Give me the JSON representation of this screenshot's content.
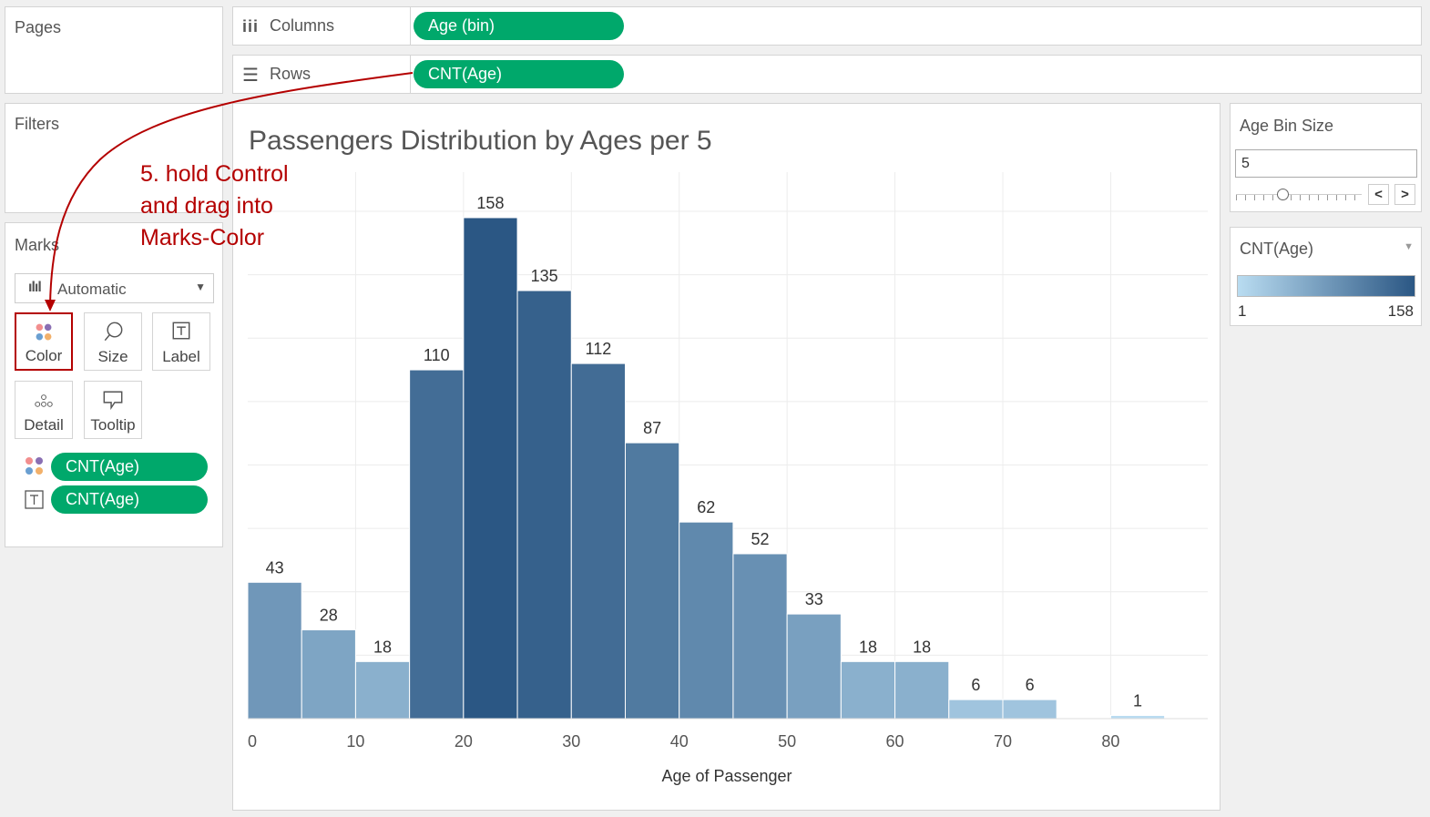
{
  "pages": {
    "label": "Pages"
  },
  "filters": {
    "label": "Filters"
  },
  "shelves": {
    "columns": {
      "label": "Columns",
      "pill": "Age (bin)"
    },
    "rows": {
      "label": "Rows",
      "pill": "CNT(Age)"
    }
  },
  "marks": {
    "label": "Marks",
    "type": "Automatic",
    "buttons": {
      "color": "Color",
      "size": "Size",
      "label": "Label",
      "detail": "Detail",
      "tooltip": "Tooltip"
    },
    "pills": [
      "CNT(Age)",
      "CNT(Age)"
    ]
  },
  "annotation": {
    "lines": [
      "5. hold Control",
      "and drag into",
      "Marks-Color"
    ]
  },
  "parameter": {
    "title": "Age Bin Size",
    "value": "5"
  },
  "legend": {
    "title": "CNT(Age)",
    "min": "1",
    "max": "158"
  },
  "colors": {
    "pill": "#00a86b",
    "annotation": "#b40000",
    "bar_light": "#a9d0ea",
    "bar_dark": "#2b5784"
  },
  "chart_data": {
    "type": "bar",
    "title": "Passengers Distribution by Ages per 5",
    "xlabel": "Age of Passenger",
    "ylabel": "",
    "bin_size": 5,
    "x": [
      0,
      5,
      10,
      15,
      20,
      25,
      30,
      35,
      40,
      45,
      50,
      55,
      60,
      65,
      70,
      75,
      80
    ],
    "values": [
      43,
      28,
      18,
      110,
      158,
      135,
      112,
      87,
      62,
      52,
      33,
      18,
      18,
      6,
      6,
      null,
      1
    ],
    "x_ticks": [
      0,
      10,
      20,
      30,
      40,
      50,
      60,
      70,
      80
    ],
    "xlim": [
      0,
      89
    ],
    "ylim": [
      0,
      160
    ],
    "grid": true,
    "data_labels": true
  }
}
